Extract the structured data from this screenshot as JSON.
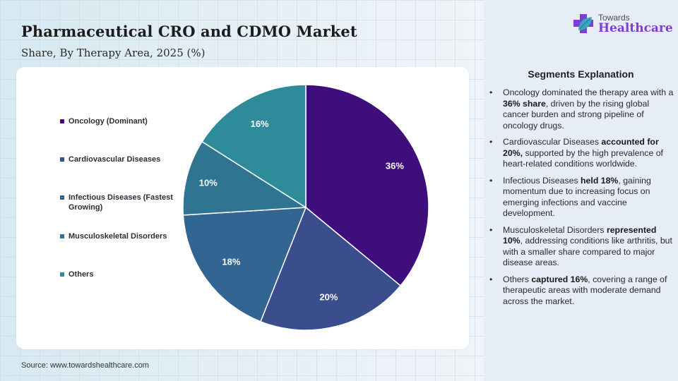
{
  "header": {
    "title": "Pharmaceutical CRO and CDMO Market",
    "subtitle": "Share, By Therapy Area, 2025 (%)"
  },
  "logo": {
    "icon": "medical-cross-leaf-icon",
    "line1": "Towards",
    "line2": "Healthcare",
    "colors": {
      "cross": "#7d3fd1",
      "leaf": "#29b8b0"
    }
  },
  "chart_data": {
    "type": "pie",
    "title": "Pharmaceutical CRO and CDMO Market",
    "subtitle": "Share, By Therapy Area, 2025 (%)",
    "unit": "%",
    "start_angle": "12 o'clock",
    "direction": "clockwise",
    "legend_position": "left",
    "categories": [
      "Oncology (Dominant)",
      "Cardiovascular Diseases",
      "Infectious Diseases (Fastest Growing)",
      "Musculoskeletal Disorders",
      "Others"
    ],
    "values": [
      36,
      20,
      18,
      10,
      16
    ],
    "labels": [
      "36%",
      "20%",
      "18%",
      "10%",
      "16%"
    ],
    "colors": [
      "#3e0f7c",
      "#3a4e8e",
      "#336592",
      "#2f7591",
      "#2e8c9a"
    ]
  },
  "segments": {
    "title": "Segments Explanation",
    "bullet": "•",
    "items": [
      {
        "pre": "Oncology dominated the therapy area with a ",
        "bold": "36% share",
        "post": ", driven by the rising global cancer burden and strong pipeline of oncology drugs."
      },
      {
        "pre": "Cardiovascular Diseases ",
        "bold": "accounted for 20%,",
        "post": " supported by the high prevalence of heart-related conditions worldwide."
      },
      {
        "pre": "Infectious Diseases ",
        "bold": "held 18%",
        "post": ", gaining momentum due to increasing focus on emerging infections and vaccine development."
      },
      {
        "pre": "Musculoskeletal Disorders ",
        "bold": "represented 10%",
        "post": ", addressing conditions like arthritis, but with a smaller share compared to major disease areas."
      },
      {
        "pre": "Others ",
        "bold": "captured 16%",
        "post": ", covering a range of therapeutic areas with moderate demand across the market."
      }
    ]
  },
  "footer": {
    "source": "Source: www.towardshealthcare.com"
  }
}
